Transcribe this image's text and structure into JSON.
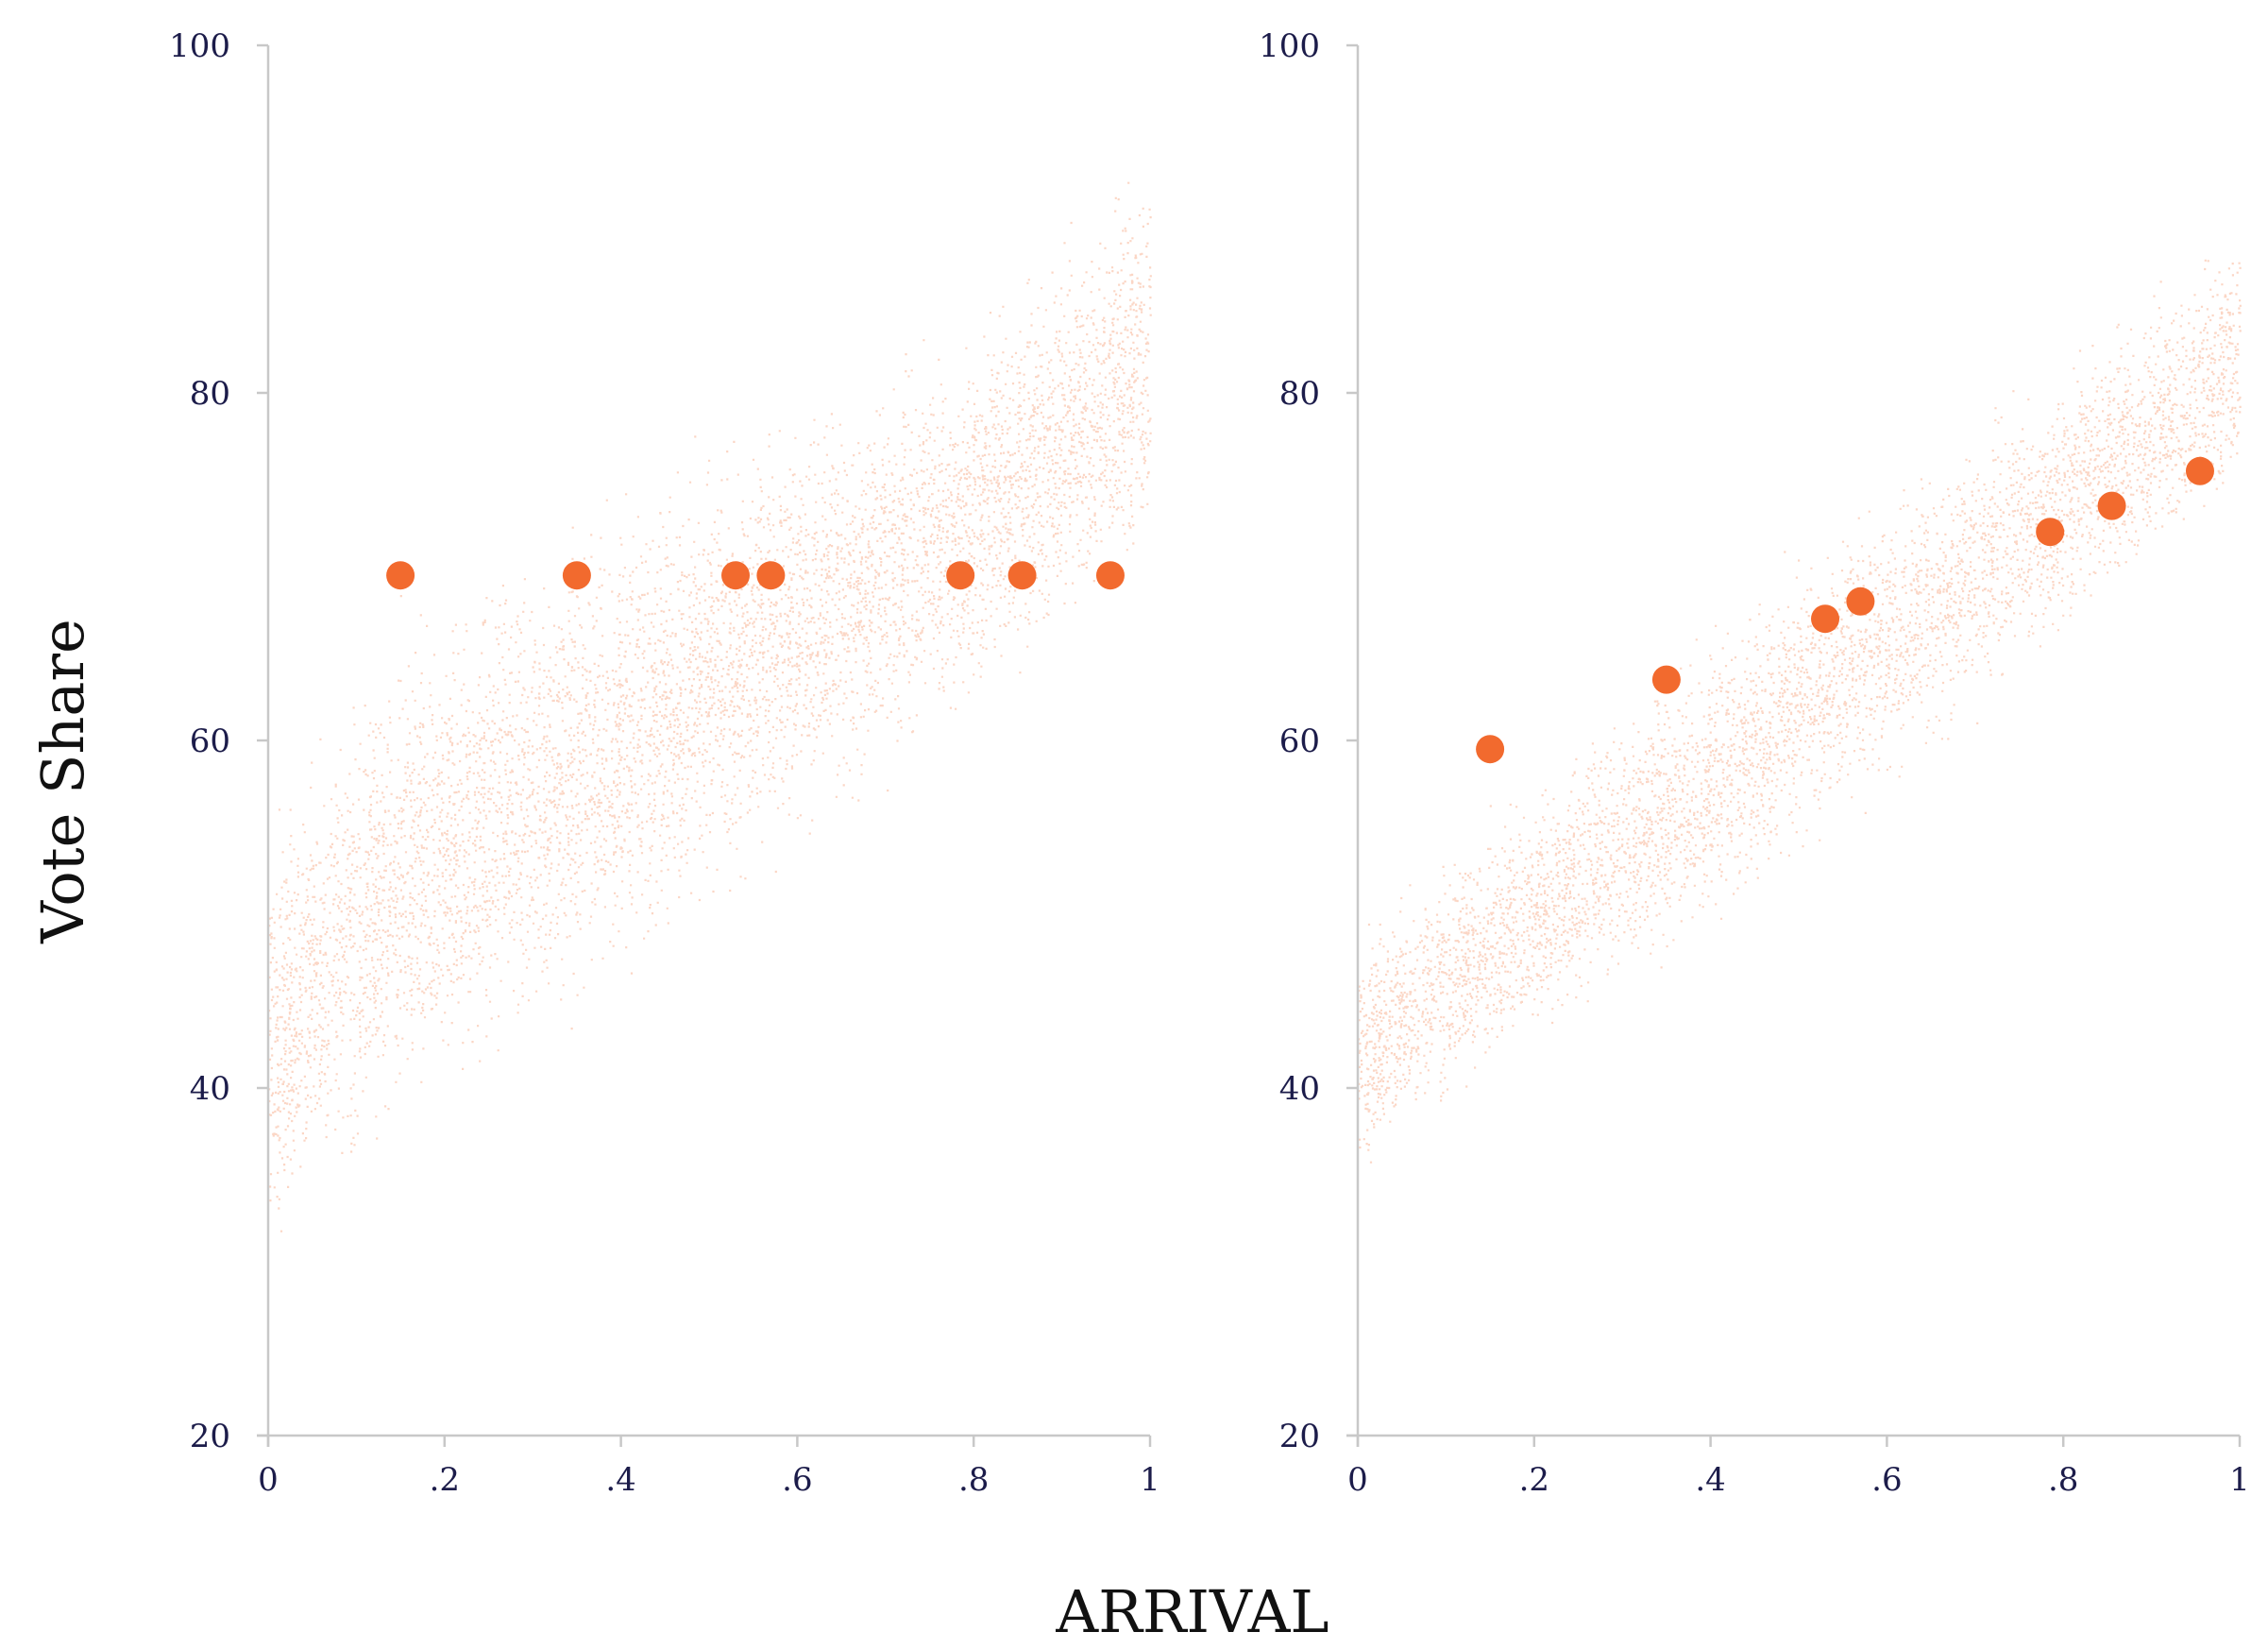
{
  "figure": {
    "xlabel": "ARRIVAL",
    "ylabel": "Vote Share"
  },
  "colors": {
    "accent": "#f26a2e",
    "cloud": "#f26a2e",
    "axis": "#c8c8c8",
    "tick_text": "#1c1c4a"
  },
  "chart_data": [
    {
      "type": "scatter",
      "name": "left-panel",
      "xlim": [
        0,
        1
      ],
      "ylim": [
        20,
        100
      ],
      "x_ticks": [
        0,
        0.2,
        0.4,
        0.6,
        0.8,
        1
      ],
      "x_tick_labels": [
        "0",
        ".2",
        ".4",
        ".6",
        ".8",
        "1"
      ],
      "y_ticks": [
        20,
        40,
        60,
        80,
        100
      ],
      "y_tick_labels": [
        "20",
        "40",
        "60",
        "80",
        "100"
      ],
      "grid": false,
      "highlight_points": {
        "x": [
          0.15,
          0.35,
          0.53,
          0.57,
          0.785,
          0.855,
          0.955
        ],
        "y": [
          69.5,
          69.5,
          69.5,
          69.5,
          69.5,
          69.5,
          69.5
        ]
      },
      "cloud": {
        "lower_bound": [
          [
            0,
            29
          ],
          [
            1,
            68
          ]
        ],
        "upper_bound": [
          [
            0,
            57
          ],
          [
            0.15,
            69
          ],
          [
            0.4,
            76
          ],
          [
            0.6,
            81
          ],
          [
            0.8,
            86
          ],
          [
            1,
            96
          ]
        ]
      }
    },
    {
      "type": "scatter",
      "name": "right-panel",
      "xlim": [
        0,
        1
      ],
      "ylim": [
        20,
        100
      ],
      "x_ticks": [
        0,
        0.2,
        0.4,
        0.6,
        0.8,
        1
      ],
      "x_tick_labels": [
        "0",
        ".2",
        ".4",
        ".6",
        ".8",
        "1"
      ],
      "y_ticks": [
        20,
        40,
        60,
        80,
        100
      ],
      "y_tick_labels": [
        "20",
        "40",
        "60",
        "80",
        "100"
      ],
      "grid": false,
      "highlight_points": {
        "x": [
          0.15,
          0.35,
          0.53,
          0.57,
          0.785,
          0.855,
          0.955
        ],
        "y": [
          59.5,
          63.5,
          67,
          68,
          72,
          73.5,
          75.5
        ]
      },
      "cloud": {
        "lower_bound": [
          [
            0,
            34
          ],
          [
            0.5,
            52
          ],
          [
            1,
            73
          ]
        ],
        "upper_bound": [
          [
            0,
            50
          ],
          [
            0.5,
            72
          ],
          [
            1,
            91
          ]
        ]
      }
    }
  ]
}
